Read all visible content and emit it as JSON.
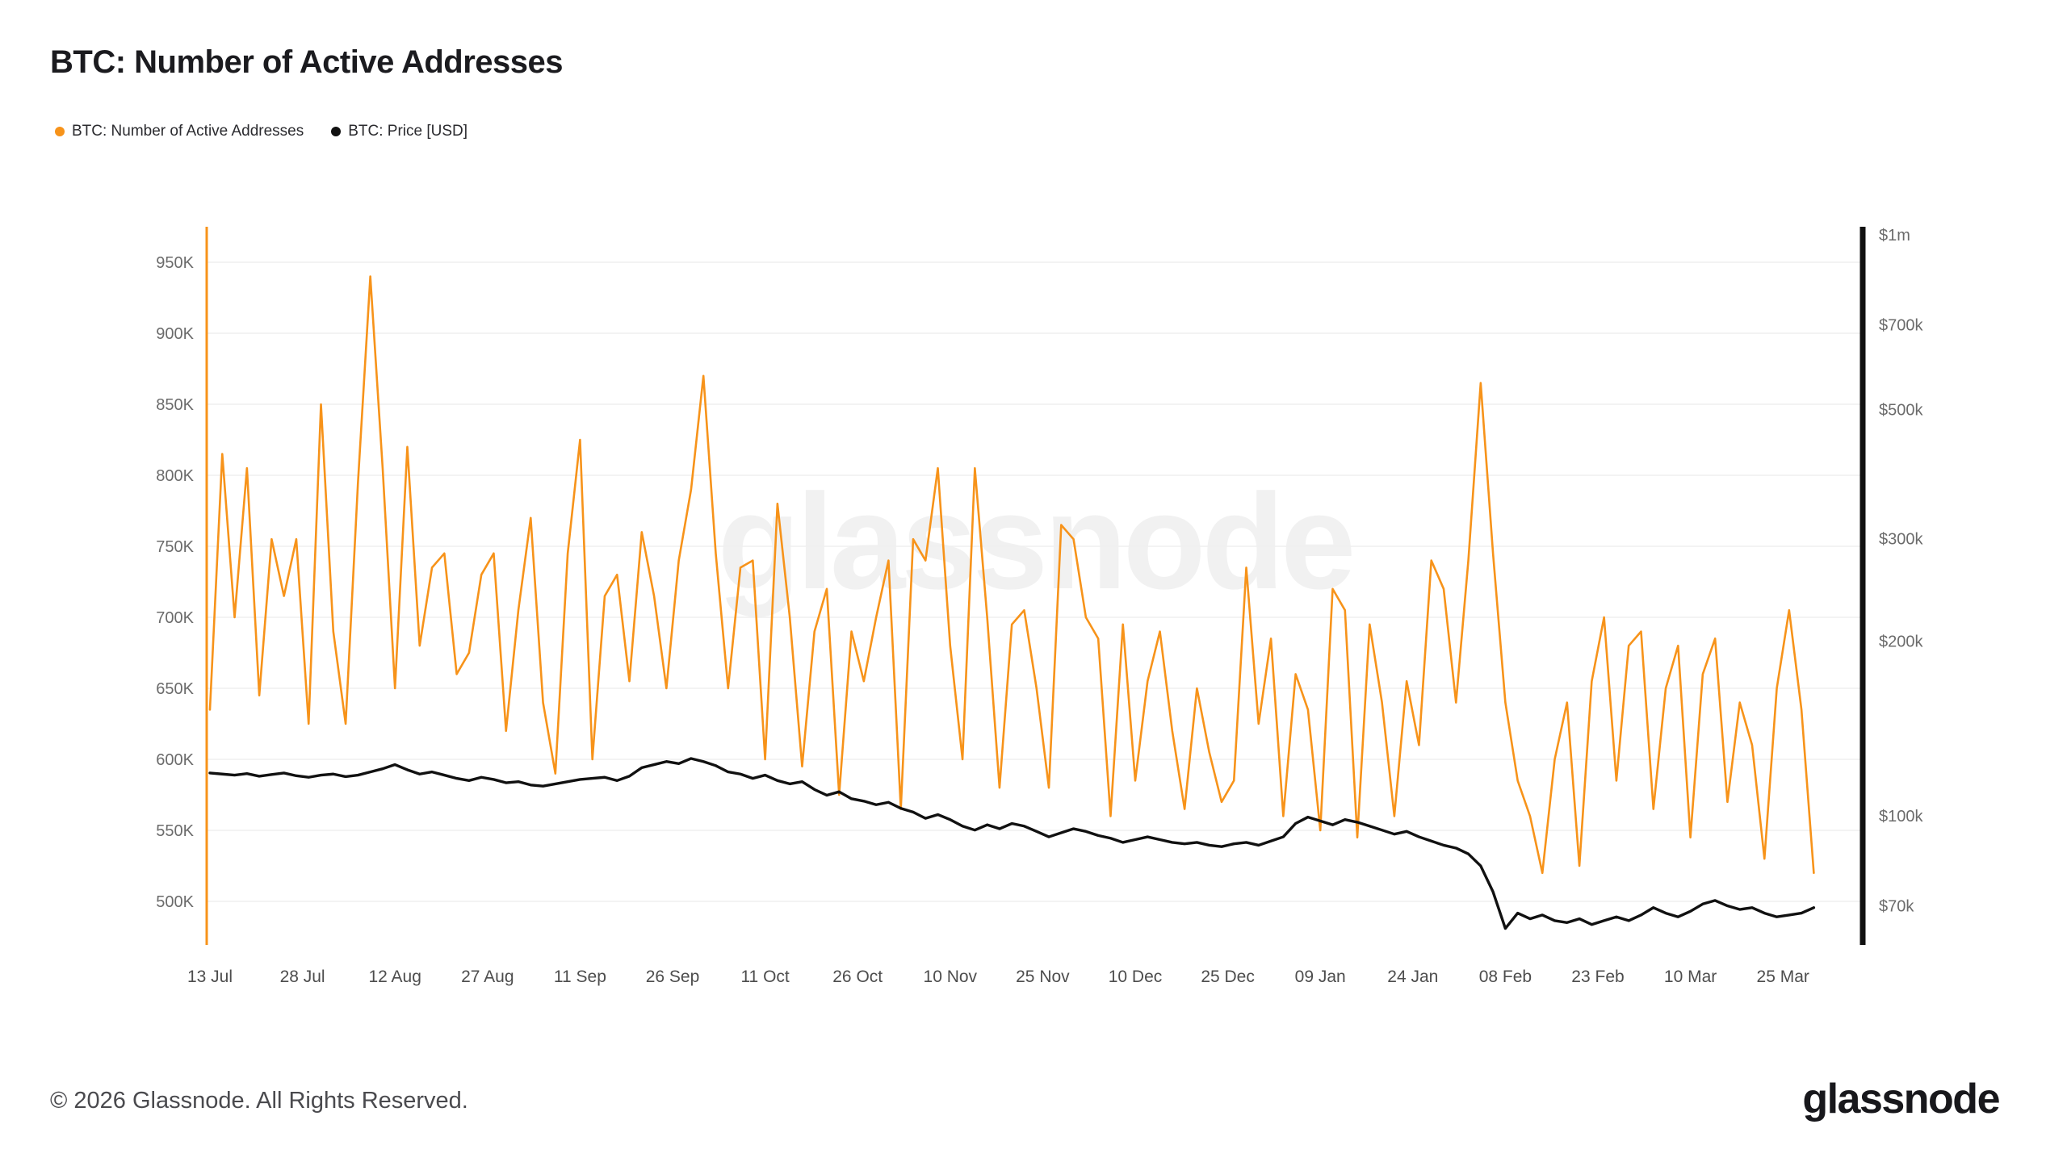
{
  "page": {
    "title": "BTC: Number of Active Addresses",
    "footer": "© 2026 Glassnode. All Rights Reserved.",
    "logo_text": "glassnode",
    "watermark_text": "glassnode"
  },
  "colors": {
    "addresses_series": "#f7931a",
    "price_series": "#111111",
    "gridline": "#efefef",
    "left_axis_line": "#f7931a",
    "right_axis_line": "#111111"
  },
  "legend": [
    {
      "label": "BTC: Number of Active Addresses",
      "color": "#f7931a"
    },
    {
      "label": "BTC: Price [USD]",
      "color": "#111111"
    }
  ],
  "chart_data": {
    "type": "line",
    "title": "BTC: Number of Active Addresses",
    "x_tick_labels": [
      "13 Jul",
      "28 Jul",
      "12 Aug",
      "27 Aug",
      "11 Sep",
      "26 Sep",
      "11 Oct",
      "26 Oct",
      "10 Nov",
      "25 Nov",
      "10 Dec",
      "25 Dec",
      "09 Jan",
      "24 Jan",
      "08 Feb",
      "23 Feb",
      "10 Mar",
      "25 Mar"
    ],
    "x_tick_interval_days": 15,
    "sample_interval_days": 2,
    "left_axis": {
      "ticks": [
        "950K",
        "900K",
        "850K",
        "800K",
        "750K",
        "700K",
        "650K",
        "600K",
        "550K",
        "500K"
      ],
      "values": [
        950,
        900,
        850,
        800,
        750,
        700,
        650,
        600,
        550,
        500
      ],
      "unit": "active addresses (thousands)",
      "scale": "linear"
    },
    "right_axis": {
      "ticks": [
        "$1m",
        "$700k",
        "$500k",
        "$300k",
        "$200k",
        "$100k",
        "$70k"
      ],
      "values": [
        1000,
        700,
        500,
        300,
        200,
        100,
        70
      ],
      "unit": "USD (thousands)",
      "scale": "log"
    },
    "series": [
      {
        "name": "BTC: Number of Active Addresses",
        "axis": "left",
        "unit": "thousands of addresses",
        "color": "#f7931a",
        "values": [
          635,
          815,
          700,
          805,
          645,
          755,
          715,
          755,
          625,
          850,
          690,
          625,
          795,
          940,
          805,
          650,
          820,
          680,
          735,
          745,
          660,
          675,
          730,
          745,
          620,
          705,
          770,
          640,
          590,
          745,
          825,
          600,
          715,
          730,
          655,
          760,
          715,
          650,
          740,
          790,
          870,
          745,
          650,
          735,
          740,
          600,
          780,
          700,
          595,
          690,
          720,
          575,
          690,
          655,
          700,
          740,
          565,
          755,
          740,
          805,
          680,
          600,
          805,
          700,
          580,
          695,
          705,
          650,
          580,
          765,
          755,
          700,
          685,
          560,
          695,
          585,
          655,
          690,
          620,
          565,
          650,
          605,
          570,
          585,
          735,
          625,
          685,
          560,
          660,
          635,
          550,
          720,
          705,
          545,
          695,
          640,
          560,
          655,
          610,
          740,
          720,
          640,
          740,
          865,
          745,
          640,
          585,
          560,
          520,
          600,
          640,
          525,
          655,
          700,
          585,
          680,
          690,
          565,
          650,
          680,
          545,
          660,
          685,
          570,
          640,
          610,
          530,
          650,
          705,
          635,
          520
        ]
      },
      {
        "name": "BTC: Price [USD]",
        "axis": "right",
        "unit": "USD (thousands)",
        "color": "#111111",
        "values": [
          118.5,
          118.0,
          117.5,
          118.2,
          117.0,
          117.8,
          118.5,
          117.2,
          116.5,
          117.5,
          118.0,
          116.8,
          117.5,
          119.0,
          120.5,
          122.5,
          120.0,
          118.0,
          119.0,
          117.5,
          116.0,
          115.0,
          116.5,
          115.5,
          114.0,
          114.5,
          113.0,
          112.5,
          113.5,
          114.5,
          115.5,
          116.0,
          116.5,
          115.0,
          117.0,
          121.0,
          122.5,
          124.0,
          123.0,
          125.5,
          124.0,
          122.0,
          119.0,
          118.0,
          116.0,
          117.5,
          115.0,
          113.5,
          114.5,
          111.0,
          108.5,
          110.0,
          107.0,
          106.0,
          104.5,
          105.5,
          103.0,
          101.5,
          99.0,
          100.5,
          98.5,
          96.0,
          94.5,
          96.5,
          95.0,
          97.0,
          96.0,
          94.0,
          92.0,
          93.5,
          95.0,
          94.0,
          92.5,
          91.5,
          90.0,
          91.0,
          92.0,
          91.0,
          90.0,
          89.5,
          90.0,
          89.0,
          88.5,
          89.5,
          90.0,
          89.0,
          90.5,
          92.0,
          97.0,
          99.5,
          98.0,
          96.5,
          98.5,
          97.5,
          96.0,
          94.5,
          93.0,
          94.0,
          92.0,
          90.5,
          89.0,
          88.0,
          86.0,
          82.0,
          74.0,
          64.0,
          68.0,
          66.5,
          67.5,
          66.0,
          65.5,
          66.5,
          65.0,
          66.0,
          67.0,
          66.0,
          67.5,
          69.5,
          68.0,
          67.0,
          68.5,
          70.5,
          71.5,
          70.0,
          69.0,
          69.5,
          68.0,
          67.0,
          67.5,
          68.0,
          69.5
        ]
      }
    ]
  }
}
